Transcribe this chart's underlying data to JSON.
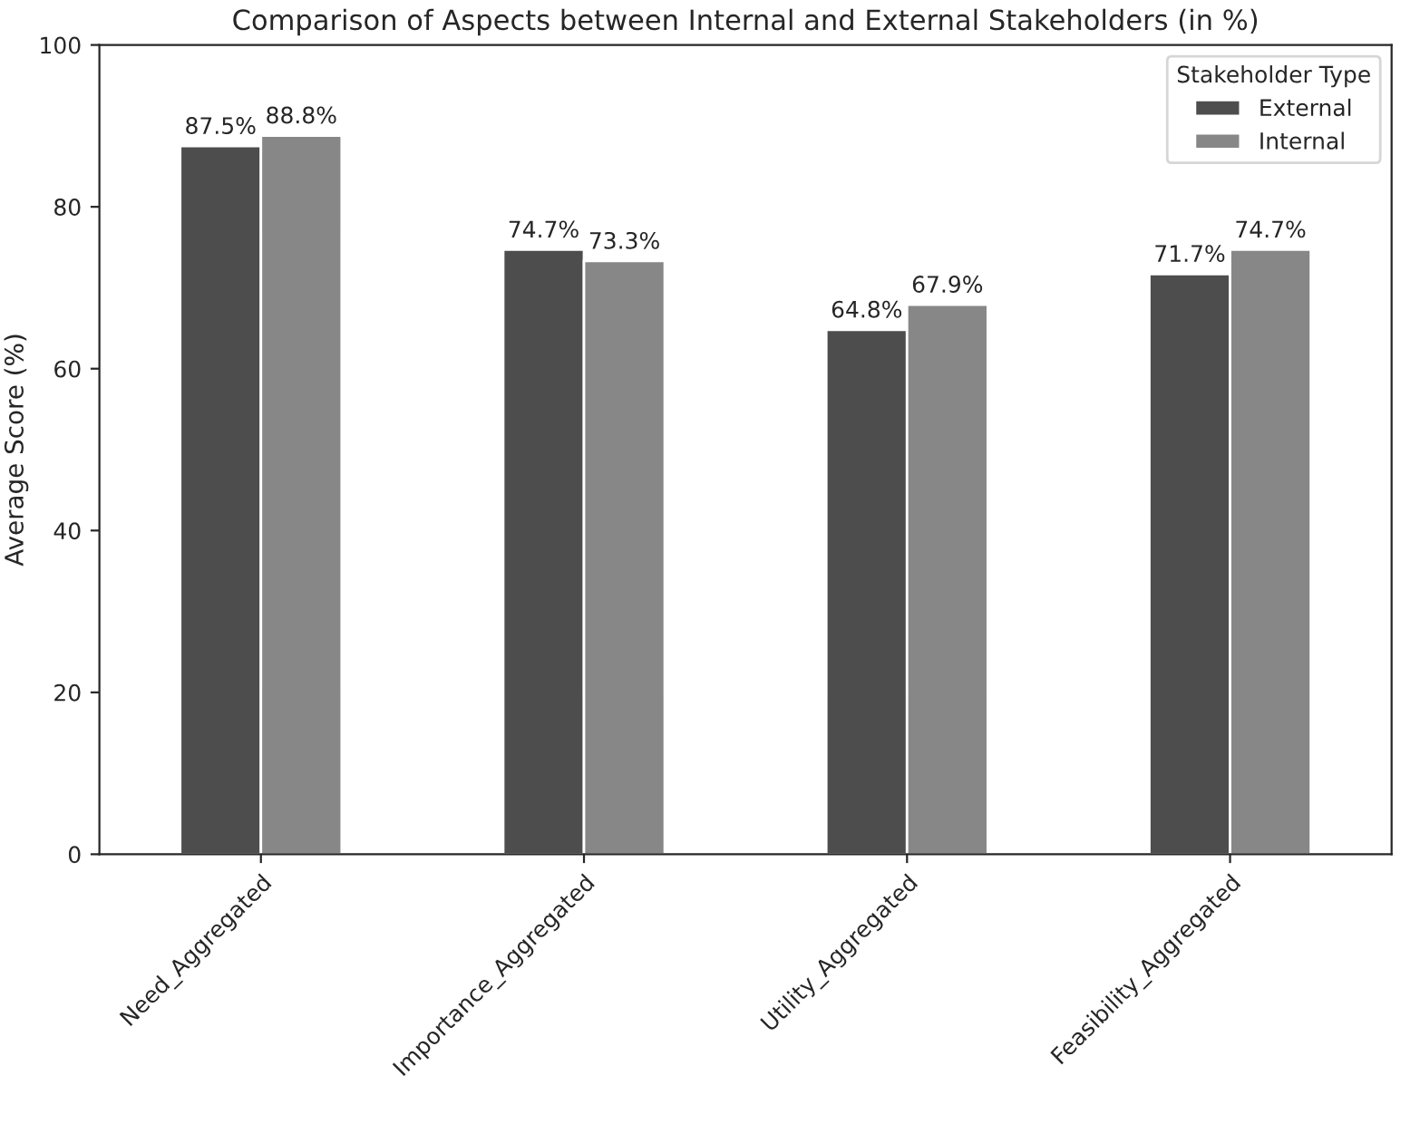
{
  "chart_data": {
    "type": "bar",
    "title": "Comparison of Aspects between Internal and External Stakeholders (in %)",
    "ylabel": "Average Score (%)",
    "categories": [
      "Need_Aggregated",
      "Importance_Aggregated",
      "Utility_Aggregated",
      "Feasibility_Aggregated"
    ],
    "series": [
      {
        "name": "External",
        "color": "#4d4d4d",
        "values": [
          87.5,
          74.7,
          64.8,
          71.7
        ],
        "value_labels": [
          "87.5%",
          "74.7%",
          "64.8%",
          "71.7%"
        ]
      },
      {
        "name": "Internal",
        "color": "#878787",
        "values": [
          88.8,
          73.3,
          67.9,
          74.7
        ],
        "value_labels": [
          "88.8%",
          "73.3%",
          "67.9%",
          "74.7%"
        ]
      }
    ],
    "legend_title": "Stakeholder Type",
    "legend": "top right",
    "ylim": [
      0,
      100
    ],
    "yticks": [
      0,
      20,
      40,
      60,
      80,
      100
    ],
    "grid": false
  }
}
